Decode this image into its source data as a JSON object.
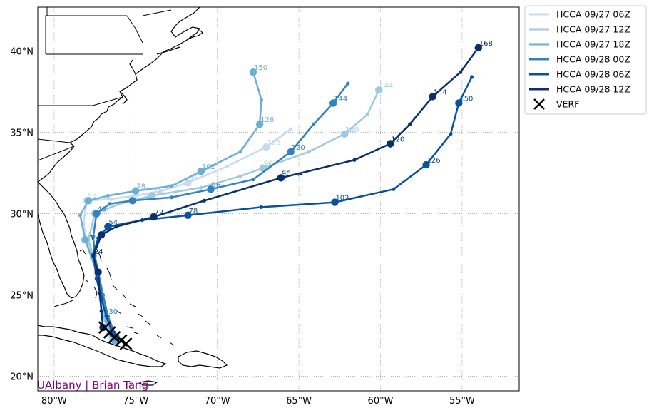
{
  "chart_data": {
    "type": "line",
    "title": "",
    "xlabel": "",
    "ylabel": "",
    "xlim": [
      -81,
      -51.5
    ],
    "ylim": [
      19.1,
      42.7
    ],
    "grid": true,
    "legend": "outside-top-right",
    "x_ticks": [
      {
        "value": -80,
        "label": "80°W"
      },
      {
        "value": -75,
        "label": "75°W"
      },
      {
        "value": -70,
        "label": "70°W"
      },
      {
        "value": -65,
        "label": "65°W"
      },
      {
        "value": -60,
        "label": "60°W"
      },
      {
        "value": -55,
        "label": "55°W"
      }
    ],
    "y_ticks": [
      {
        "value": 20,
        "label": "20°N"
      },
      {
        "value": 25,
        "label": "25°N"
      },
      {
        "value": 30,
        "label": "30°N"
      },
      {
        "value": 35,
        "label": "35°N"
      },
      {
        "value": 40,
        "label": "40°N"
      }
    ],
    "series": [
      {
        "name": "HCCA 09/27 06Z",
        "color": "#c6dbef",
        "points": [
          {
            "lon": -76.6,
            "lat": 22.6,
            "label": "",
            "big": true
          },
          {
            "lon": -77.0,
            "lat": 23.6,
            "label": "",
            "big": false
          },
          {
            "lon": -77.2,
            "lat": 24.8,
            "label": "",
            "big": false
          },
          {
            "lon": -77.4,
            "lat": 26.3,
            "label": "",
            "big": false
          },
          {
            "lon": -77.6,
            "lat": 27.3,
            "label": "",
            "big": false
          },
          {
            "lon": -78.0,
            "lat": 28.3,
            "label": "",
            "big": false
          },
          {
            "lon": -78.2,
            "lat": 29.4,
            "label": "",
            "big": false
          },
          {
            "lon": -78.0,
            "lat": 30.8,
            "label": "54",
            "big": true
          },
          {
            "lon": -76.5,
            "lat": 30.9,
            "label": "",
            "big": false
          },
          {
            "lon": -75.0,
            "lat": 31.1,
            "label": "",
            "big": false
          },
          {
            "lon": -73.4,
            "lat": 31.4,
            "label": "",
            "big": false
          },
          {
            "lon": -71.8,
            "lat": 31.9,
            "label": "90",
            "big": true
          },
          {
            "lon": -69.4,
            "lat": 32.9,
            "label": "",
            "big": false
          },
          {
            "lon": -67.0,
            "lat": 34.1,
            "label": "126",
            "big": true
          },
          {
            "lon": -65.5,
            "lat": 35.2,
            "label": "",
            "big": false
          }
        ]
      },
      {
        "name": "HCCA 09/27 12Z",
        "color": "#9ecae1",
        "points": [
          {
            "lon": -76.4,
            "lat": 22.3,
            "label": "",
            "big": true
          },
          {
            "lon": -76.9,
            "lat": 23.5,
            "label": "",
            "big": false
          },
          {
            "lon": -77.1,
            "lat": 24.7,
            "label": "",
            "big": false
          },
          {
            "lon": -77.3,
            "lat": 26.2,
            "label": "",
            "big": false
          },
          {
            "lon": -77.6,
            "lat": 27.3,
            "label": "",
            "big": false
          },
          {
            "lon": -77.9,
            "lat": 28.4,
            "label": "",
            "big": false
          },
          {
            "lon": -77.5,
            "lat": 30.0,
            "label": "",
            "big": true
          },
          {
            "lon": -76.0,
            "lat": 30.6,
            "label": "",
            "big": false
          },
          {
            "lon": -74.0,
            "lat": 31.1,
            "label": "72",
            "big": true
          },
          {
            "lon": -71.0,
            "lat": 31.6,
            "label": "",
            "big": false
          },
          {
            "lon": -68.6,
            "lat": 32.3,
            "label": "",
            "big": false
          },
          {
            "lon": -67.2,
            "lat": 32.8,
            "label": "96",
            "big": true
          },
          {
            "lon": -64.4,
            "lat": 33.8,
            "label": "",
            "big": false
          },
          {
            "lon": -62.2,
            "lat": 34.9,
            "label": "120",
            "big": true
          },
          {
            "lon": -60.8,
            "lat": 36.1,
            "label": "",
            "big": false
          },
          {
            "lon": -60.1,
            "lat": 37.6,
            "label": "144",
            "big": true
          }
        ]
      },
      {
        "name": "HCCA 09/27 18Z",
        "color": "#6baed6",
        "points": [
          {
            "lon": -76.3,
            "lat": 22.2,
            "label": "",
            "big": true
          },
          {
            "lon": -76.8,
            "lat": 23.4,
            "label": "",
            "big": false
          },
          {
            "lon": -77.0,
            "lat": 24.6,
            "label": "",
            "big": false
          },
          {
            "lon": -77.3,
            "lat": 26.1,
            "label": "",
            "big": false
          },
          {
            "lon": -77.7,
            "lat": 27.3,
            "label": "",
            "big": false
          },
          {
            "lon": -78.1,
            "lat": 28.4,
            "label": "",
            "big": true
          },
          {
            "lon": -78.4,
            "lat": 29.9,
            "label": "",
            "big": false
          },
          {
            "lon": -77.9,
            "lat": 30.8,
            "label": "",
            "big": true
          },
          {
            "lon": -76.7,
            "lat": 31.1,
            "label": "",
            "big": false
          },
          {
            "lon": -75.0,
            "lat": 31.4,
            "label": "78",
            "big": true
          },
          {
            "lon": -72.8,
            "lat": 31.7,
            "label": "",
            "big": false
          },
          {
            "lon": -71.0,
            "lat": 32.6,
            "label": "102",
            "big": true
          },
          {
            "lon": -68.6,
            "lat": 33.8,
            "label": "",
            "big": false
          },
          {
            "lon": -67.4,
            "lat": 35.5,
            "label": "126",
            "big": true
          },
          {
            "lon": -67.3,
            "lat": 37.0,
            "label": "",
            "big": false
          },
          {
            "lon": -67.8,
            "lat": 38.7,
            "label": "150",
            "big": true
          }
        ]
      },
      {
        "name": "HCCA 09/28 00Z",
        "color": "#3182bd",
        "points": [
          {
            "lon": -76.2,
            "lat": 22.4,
            "label": "",
            "big": true
          },
          {
            "lon": -76.7,
            "lat": 23.7,
            "label": "30",
            "big": false
          },
          {
            "lon": -77.0,
            "lat": 25.0,
            "label": "",
            "big": false
          },
          {
            "lon": -77.3,
            "lat": 26.4,
            "label": "",
            "big": false
          },
          {
            "lon": -77.5,
            "lat": 27.4,
            "label": "",
            "big": false
          },
          {
            "lon": -77.6,
            "lat": 28.6,
            "label": "",
            "big": false
          },
          {
            "lon": -77.4,
            "lat": 30.0,
            "label": "48",
            "big": true
          },
          {
            "lon": -76.6,
            "lat": 30.6,
            "label": "",
            "big": false
          },
          {
            "lon": -75.2,
            "lat": 30.8,
            "label": "",
            "big": true
          },
          {
            "lon": -72.8,
            "lat": 31.0,
            "label": "",
            "big": false
          },
          {
            "lon": -70.4,
            "lat": 31.5,
            "label": "96",
            "big": true
          },
          {
            "lon": -67.8,
            "lat": 32.1,
            "label": "",
            "big": false
          },
          {
            "lon": -65.5,
            "lat": 33.8,
            "label": "120",
            "big": true
          },
          {
            "lon": -64.1,
            "lat": 35.5,
            "label": "",
            "big": false
          },
          {
            "lon": -62.9,
            "lat": 36.8,
            "label": "144",
            "big": true
          },
          {
            "lon": -62.0,
            "lat": 38.0,
            "label": "",
            "big": false
          }
        ]
      },
      {
        "name": "HCCA 09/28 06Z",
        "color": "#08519c",
        "points": [
          {
            "lon": -76.4,
            "lat": 22.6,
            "label": "",
            "big": true
          },
          {
            "lon": -76.8,
            "lat": 23.7,
            "label": "",
            "big": false
          },
          {
            "lon": -77.1,
            "lat": 24.8,
            "label": "",
            "big": false
          },
          {
            "lon": -77.4,
            "lat": 26.0,
            "label": "",
            "big": false
          },
          {
            "lon": -77.6,
            "lat": 27.5,
            "label": "",
            "big": false
          },
          {
            "lon": -77.3,
            "lat": 28.5,
            "label": "",
            "big": false
          },
          {
            "lon": -76.7,
            "lat": 29.2,
            "label": "54",
            "big": true
          },
          {
            "lon": -74.6,
            "lat": 29.6,
            "label": "",
            "big": false
          },
          {
            "lon": -71.8,
            "lat": 29.9,
            "label": "78",
            "big": true
          },
          {
            "lon": -67.3,
            "lat": 30.4,
            "label": "",
            "big": false
          },
          {
            "lon": -62.8,
            "lat": 30.7,
            "label": "102",
            "big": true
          },
          {
            "lon": -59.2,
            "lat": 31.5,
            "label": "",
            "big": false
          },
          {
            "lon": -57.2,
            "lat": 33.0,
            "label": "126",
            "big": true
          },
          {
            "lon": -55.7,
            "lat": 34.9,
            "label": "",
            "big": false
          },
          {
            "lon": -55.2,
            "lat": 36.8,
            "label": "150",
            "big": true
          },
          {
            "lon": -54.4,
            "lat": 38.4,
            "label": "",
            "big": false
          }
        ]
      },
      {
        "name": "HCCA 09/28 12Z",
        "color": "#08306b",
        "points": [
          {
            "lon": -77.0,
            "lat": 23.0,
            "label": "",
            "big": true
          },
          {
            "lon": -77.1,
            "lat": 24.0,
            "label": "",
            "big": false
          },
          {
            "lon": -77.2,
            "lat": 25.1,
            "label": "",
            "big": false
          },
          {
            "lon": -77.3,
            "lat": 26.4,
            "label": "",
            "big": true
          },
          {
            "lon": -77.6,
            "lat": 27.4,
            "label": "24",
            "big": false
          },
          {
            "lon": -77.1,
            "lat": 28.7,
            "label": "",
            "big": true
          },
          {
            "lon": -76.2,
            "lat": 29.2,
            "label": "",
            "big": false
          },
          {
            "lon": -73.9,
            "lat": 29.8,
            "label": "72",
            "big": true
          },
          {
            "lon": -70.8,
            "lat": 30.8,
            "label": "",
            "big": false
          },
          {
            "lon": -66.1,
            "lat": 32.2,
            "label": "96",
            "big": true
          },
          {
            "lon": -61.6,
            "lat": 33.3,
            "label": "",
            "big": false
          },
          {
            "lon": -59.4,
            "lat": 34.3,
            "label": "120",
            "big": true
          },
          {
            "lon": -58.2,
            "lat": 35.5,
            "label": "",
            "big": false
          },
          {
            "lon": -56.8,
            "lat": 37.2,
            "label": "144",
            "big": true
          },
          {
            "lon": -55.1,
            "lat": 38.7,
            "label": "",
            "big": false
          },
          {
            "lon": -54.0,
            "lat": 40.2,
            "label": "168",
            "big": true
          }
        ]
      }
    ],
    "verification": {
      "name": "VERF",
      "color": "#000000",
      "points": [
        {
          "lon": -76.9,
          "lat": 23.0
        },
        {
          "lon": -76.6,
          "lat": 22.7
        },
        {
          "lon": -76.3,
          "lat": 22.4
        },
        {
          "lon": -75.9,
          "lat": 22.2
        },
        {
          "lon": -75.6,
          "lat": 22.0
        }
      ]
    }
  },
  "credit": "UAlbany | Brian Tang",
  "colors": {
    "land_outline": "#000000",
    "grid": "#999999",
    "credit": "#800080"
  }
}
